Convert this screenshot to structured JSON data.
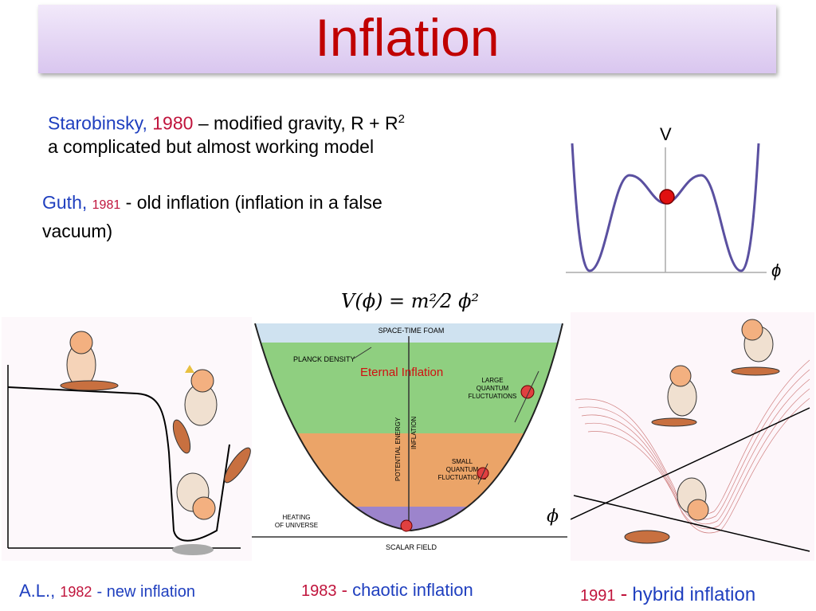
{
  "slide": {
    "title": "Inflation",
    "starobinsky": {
      "name": "Starobinsky,",
      "year": "1980",
      "desc": "– modified gravity, R + R",
      "sup": "2",
      "line2": "a complicated but almost working model"
    },
    "guth": {
      "name": "Guth,",
      "year": "1981",
      "desc": "- old inflation (inflation in a false",
      "line2": "vacuum)"
    },
    "potential_plot": {
      "v_label": "V",
      "phi_label": "ϕ"
    },
    "formula": "V(ϕ) = m²⁄2 ϕ²",
    "chaotic_diagram": {
      "top_label": "SPACE-TIME FOAM",
      "planck": "PLANCK DENSITY",
      "eternal": "Eternal   Inflation",
      "large_fluct": [
        "LARGE",
        "QUANTUM",
        "FLUCTUATIONS"
      ],
      "small_fluct": [
        "SMALL",
        "QUANTUM",
        "FLUCTUATIONS"
      ],
      "potential_energy": "POTENTIAL ENERGY",
      "inflation_axis": "INFLATION",
      "heating": [
        "HEATING",
        "OF UNIVERSE"
      ],
      "scalar_field": "SCALAR FIELD",
      "phi": "ϕ"
    },
    "captions": {
      "new": {
        "name": "A.L.,",
        "year": "1982",
        "desc": "- new inflation"
      },
      "chaotic": {
        "year": "1983",
        "dash": "-",
        "desc": "chaotic inflation"
      },
      "hybrid": {
        "year": "1991",
        "dash": "-",
        "desc": "hybrid inflation"
      }
    },
    "colors": {
      "title": "#c00000",
      "names": "#1f3fbf",
      "years": "#c0143c"
    }
  }
}
